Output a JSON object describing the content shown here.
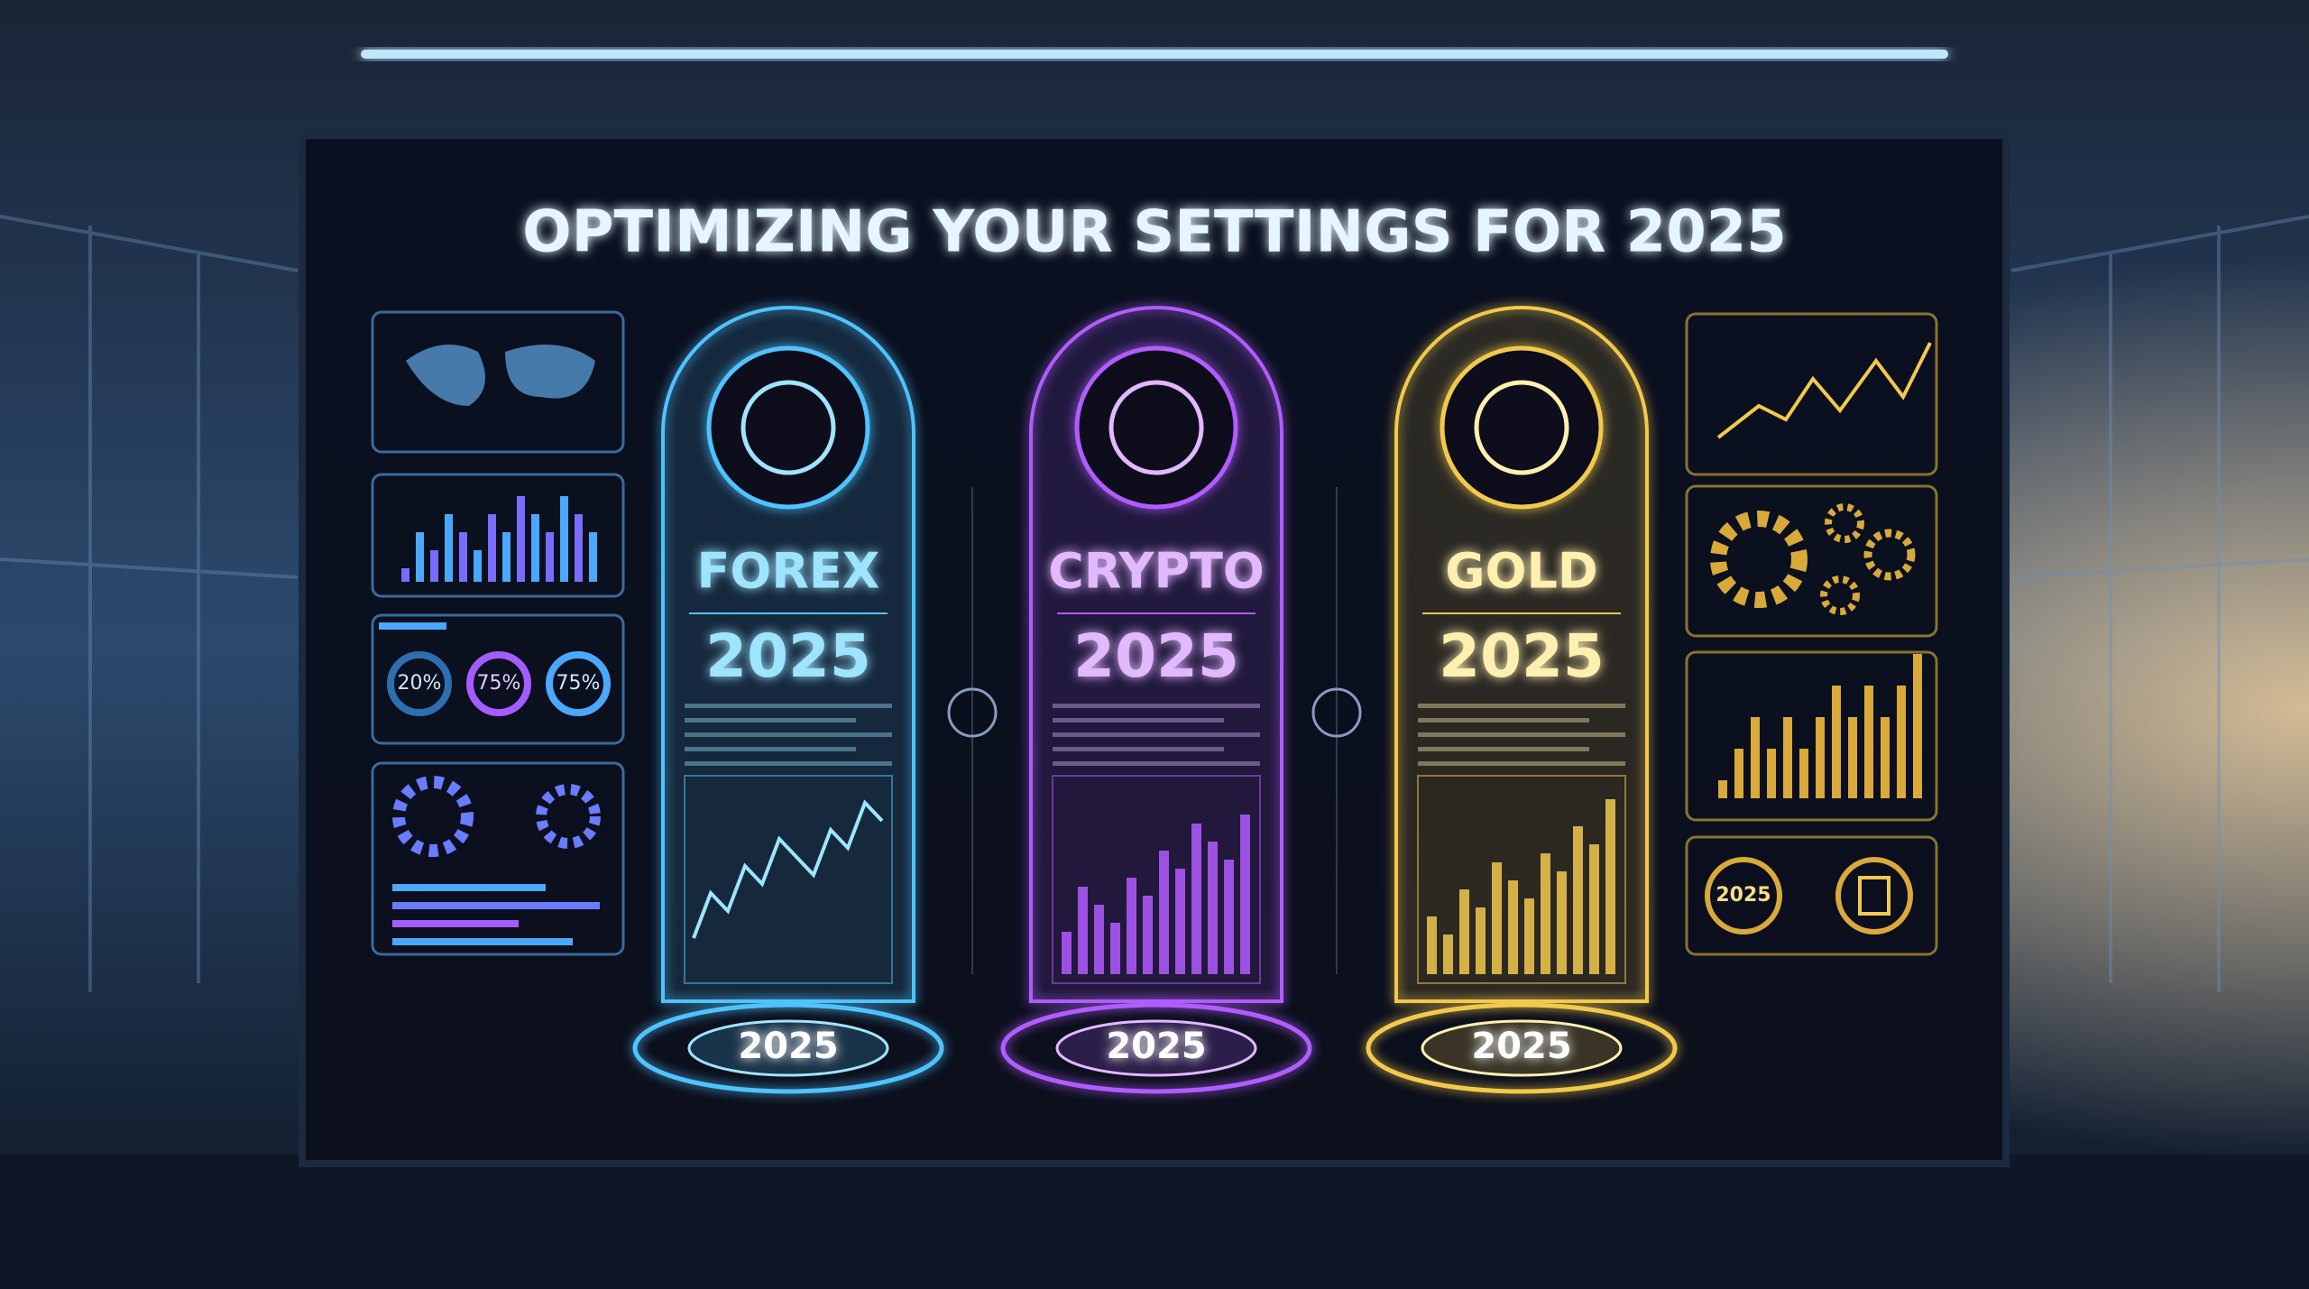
{
  "header": {
    "title": "OPTIMIZING YOUR SETTINGS FOR 2025"
  },
  "panels": [
    {
      "label": "FOREX",
      "year": "2025",
      "base": "2025"
    },
    {
      "label": "CRYPTO",
      "year": "2025",
      "base": "2025"
    },
    {
      "label": "GOLD",
      "year": "2025",
      "base": "2025"
    }
  ],
  "left_sidebar": {
    "gauges": [
      "20%",
      "75%",
      "75%"
    ]
  },
  "right_sidebar": {
    "badge": "2025"
  }
}
